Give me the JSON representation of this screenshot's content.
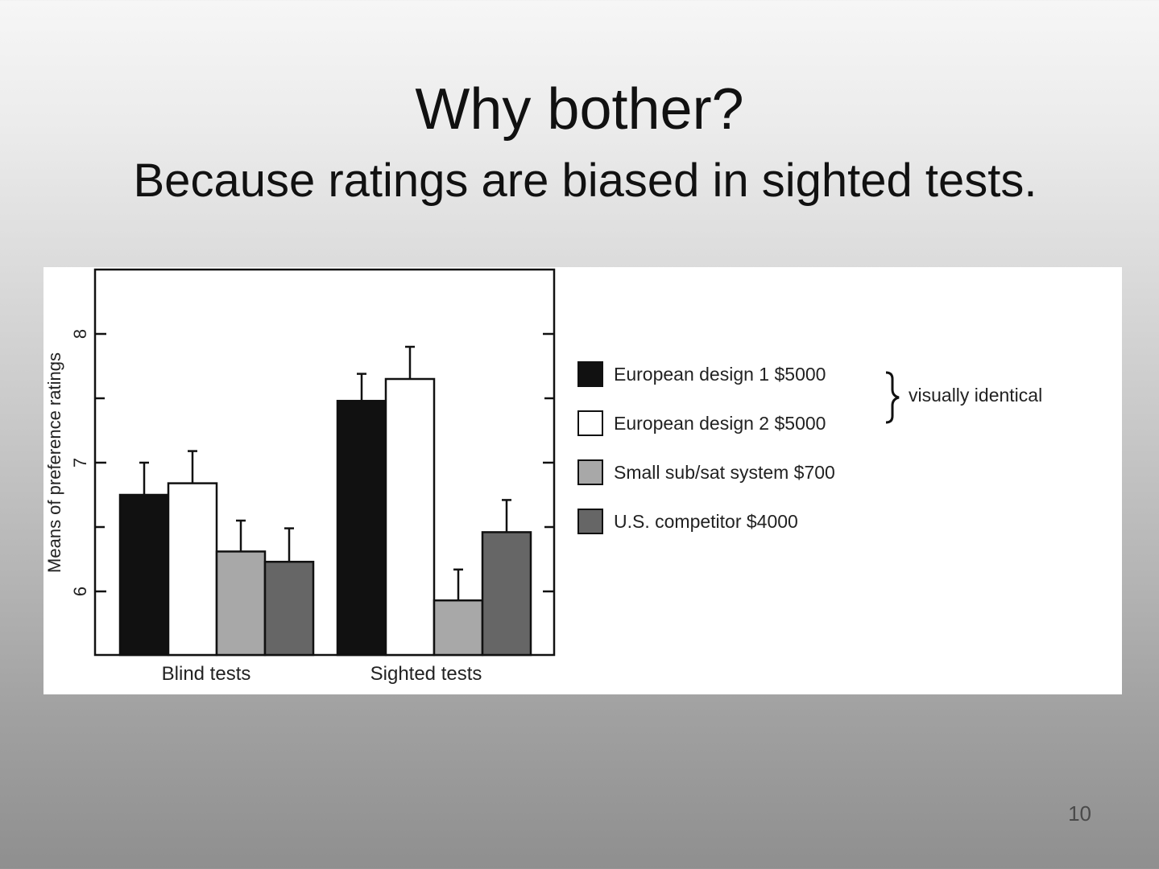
{
  "slide": {
    "title": "Why bother?",
    "subtitle": "Because ratings are biased in sighted tests.",
    "page_number": "10",
    "background": "#c8c8c8"
  },
  "chart_data": {
    "type": "bar",
    "title": "",
    "xlabel": "",
    "ylabel": "Means of preference ratings",
    "ylim": [
      5.5,
      8.5
    ],
    "yticks": [
      6,
      7,
      8
    ],
    "grid": false,
    "legend_position": "right",
    "categories": [
      "Blind tests",
      "Sighted tests"
    ],
    "series": [
      {
        "name": "European design 1  $5000",
        "color": "#111111",
        "values": [
          6.75,
          7.48
        ],
        "error": [
          0.25,
          0.21
        ]
      },
      {
        "name": "European design 2  $5000",
        "color": "#ffffff",
        "values": [
          6.84,
          7.65
        ],
        "error": [
          0.25,
          0.25
        ]
      },
      {
        "name": "Small sub/sat system $700",
        "color": "#a8a8a8",
        "values": [
          6.31,
          5.93
        ],
        "error": [
          0.24,
          0.24
        ]
      },
      {
        "name": "U.S. competitor  $4000",
        "color": "#666666",
        "values": [
          6.23,
          6.46
        ],
        "error": [
          0.26,
          0.25
        ]
      }
    ],
    "annotation": {
      "text": "visually identical",
      "applies_to": [
        "European design 1  $5000",
        "European design 2  $5000"
      ]
    }
  }
}
